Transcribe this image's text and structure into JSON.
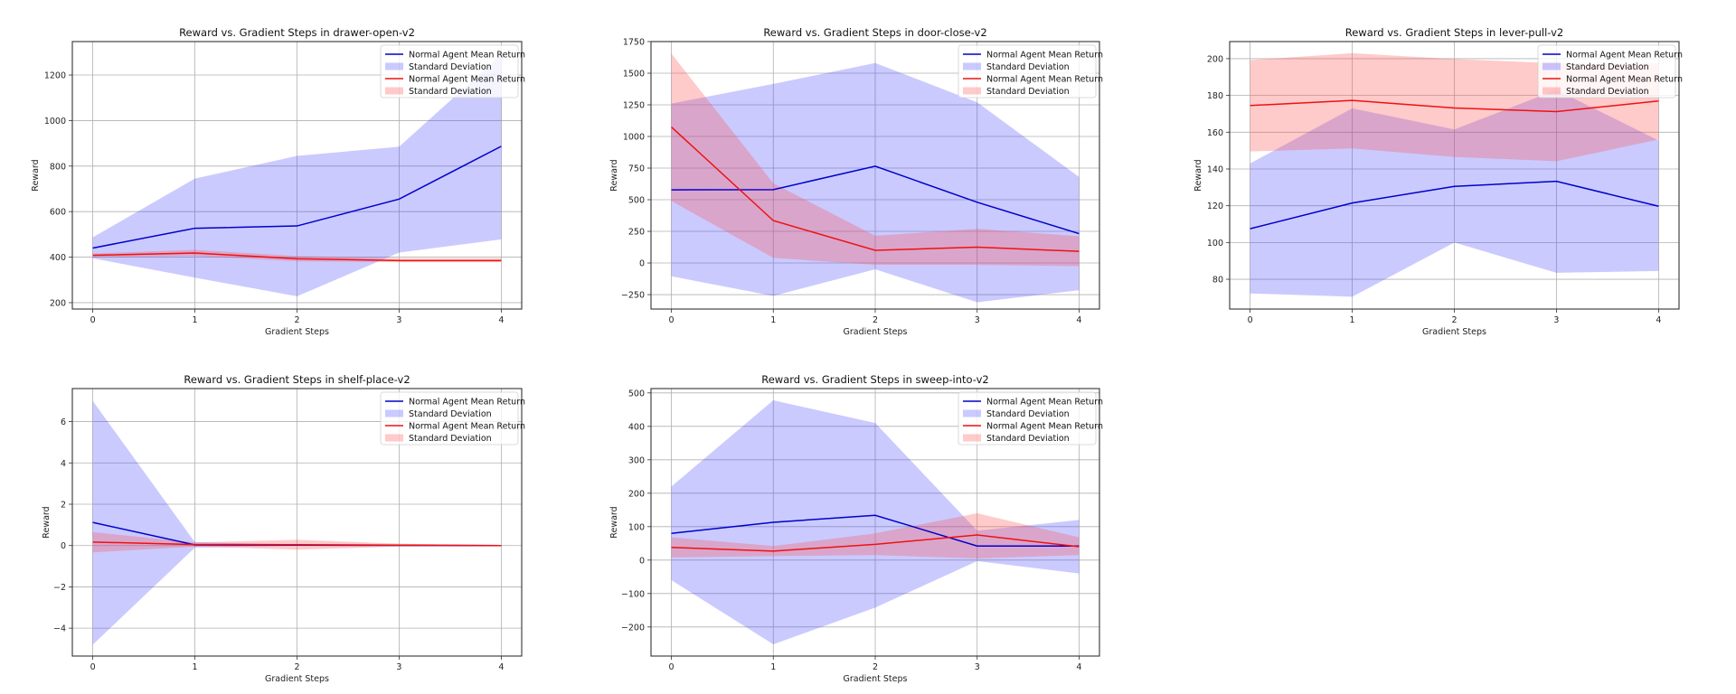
{
  "chart_data": [
    {
      "type": "line",
      "title": "Reward vs. Gradient Steps in drawer-open-v2",
      "xlabel": "Gradient Steps",
      "ylabel": "Reward",
      "x": [
        0,
        1,
        2,
        3,
        4
      ],
      "xticks": [
        0,
        1,
        2,
        3,
        4
      ],
      "yticks": [
        200,
        400,
        600,
        800,
        1000,
        1200
      ],
      "xlim": [
        -0.2,
        4.2
      ],
      "ylim": [
        172,
        1347
      ],
      "grid": true,
      "legend": "top-right",
      "series": [
        {
          "name": "Normal Agent Mean Return",
          "color": "#0000cc",
          "values": [
            440,
            527,
            537,
            655,
            887
          ],
          "std_lower": [
            395,
            310,
            228,
            420,
            478
          ],
          "std_upper": [
            487,
            745,
            845,
            885,
            1290
          ]
        },
        {
          "name": "Normal Agent Mean Return",
          "color": "#ee1111",
          "values": [
            408,
            418,
            393,
            385,
            385
          ],
          "std_lower": [
            400,
            405,
            382,
            378,
            378
          ],
          "std_upper": [
            416,
            432,
            405,
            395,
            395
          ]
        }
      ]
    },
    {
      "type": "line",
      "title": "Reward vs. Gradient Steps in door-close-v2",
      "xlabel": "Gradient Steps",
      "ylabel": "Reward",
      "x": [
        0,
        1,
        2,
        3,
        4
      ],
      "xticks": [
        0,
        1,
        2,
        3,
        4
      ],
      "yticks": [
        -250,
        0,
        250,
        500,
        750,
        1000,
        1250,
        1500,
        1750
      ],
      "xlim": [
        -0.2,
        4.2
      ],
      "ylim": [
        -364,
        1750
      ],
      "grid": true,
      "legend": "top-right",
      "series": [
        {
          "name": "Normal Agent Mean Return",
          "color": "#0000cc",
          "values": [
            578,
            580,
            765,
            480,
            232
          ],
          "std_lower": [
            -105,
            -260,
            -50,
            -310,
            -215
          ],
          "std_upper": [
            1260,
            1415,
            1580,
            1270,
            680
          ]
        },
        {
          "name": "Normal Agent Mean Return",
          "color": "#ee1111",
          "values": [
            1075,
            335,
            100,
            125,
            92
          ],
          "std_lower": [
            490,
            40,
            -15,
            -15,
            -25
          ],
          "std_upper": [
            1655,
            630,
            215,
            270,
            212
          ]
        }
      ]
    },
    {
      "type": "line",
      "title": "Reward vs. Gradient Steps in lever-pull-v2",
      "xlabel": "Gradient Steps",
      "ylabel": "Reward",
      "x": [
        0,
        1,
        2,
        3,
        4
      ],
      "xticks": [
        0,
        1,
        2,
        3,
        4
      ],
      "yticks": [
        80,
        100,
        120,
        140,
        160,
        180,
        200
      ],
      "xlim": [
        -0.2,
        4.2
      ],
      "ylim": [
        63.8,
        209.3
      ],
      "grid": true,
      "legend": "top-right",
      "series": [
        {
          "name": "Normal Agent Mean Return",
          "color": "#0000cc",
          "values": [
            107.5,
            121.5,
            130.5,
            133.3,
            119.7
          ],
          "std_lower": [
            72.3,
            70.5,
            100,
            83.5,
            84.5
          ],
          "std_upper": [
            143,
            173,
            161.5,
            183,
            155.5
          ]
        },
        {
          "name": "Normal Agent Mean Return",
          "color": "#ee1111",
          "values": [
            174.5,
            177.3,
            173.2,
            171.2,
            177
          ],
          "std_lower": [
            149.5,
            151.2,
            146.5,
            144.2,
            156
          ],
          "std_upper": [
            199.2,
            203,
            199.8,
            197.5,
            197.5
          ]
        }
      ]
    },
    {
      "type": "line",
      "title": "Reward vs. Gradient Steps in shelf-place-v2",
      "xlabel": "Gradient Steps",
      "ylabel": "Reward",
      "x": [
        0,
        1,
        2,
        3,
        4
      ],
      "xticks": [
        0,
        1,
        2,
        3,
        4
      ],
      "yticks": [
        -4,
        -2,
        0,
        2,
        4,
        6
      ],
      "xlim": [
        -0.2,
        4.2
      ],
      "ylim": [
        -5.35,
        7.6
      ],
      "grid": true,
      "legend": "top-right",
      "series": [
        {
          "name": "Normal Agent Mean Return",
          "color": "#0000cc",
          "values": [
            1.12,
            0.03,
            0.02,
            0.01,
            0.0
          ],
          "std_lower": [
            -4.8,
            -0.1,
            -0.02,
            -0.01,
            0.0
          ],
          "std_upper": [
            7.0,
            0.16,
            0.06,
            0.03,
            0.0
          ]
        },
        {
          "name": "Normal Agent Mean Return",
          "color": "#ee1111",
          "values": [
            0.17,
            0.05,
            0.04,
            0.02,
            0.0
          ],
          "std_lower": [
            -0.33,
            -0.05,
            -0.2,
            -0.05,
            0.0
          ],
          "std_upper": [
            0.65,
            0.15,
            0.28,
            0.09,
            0.0
          ]
        }
      ]
    },
    {
      "type": "line",
      "title": "Reward vs. Gradient Steps in sweep-into-v2",
      "xlabel": "Gradient Steps",
      "ylabel": "Reward",
      "x": [
        0,
        1,
        2,
        3,
        4
      ],
      "xticks": [
        0,
        1,
        2,
        3,
        4
      ],
      "yticks": [
        -200,
        -100,
        0,
        100,
        200,
        300,
        400,
        500
      ],
      "xlim": [
        -0.2,
        4.2
      ],
      "ylim": [
        -287,
        513
      ],
      "grid": true,
      "legend": "top-right",
      "series": [
        {
          "name": "Normal Agent Mean Return",
          "color": "#0000cc",
          "values": [
            80,
            113,
            134,
            42,
            42
          ],
          "std_lower": [
            -60,
            -252,
            -142,
            -3,
            -40
          ],
          "std_upper": [
            220,
            478,
            410,
            88,
            120
          ]
        },
        {
          "name": "Normal Agent Mean Return",
          "color": "#ee1111",
          "values": [
            38,
            27,
            47,
            75,
            40
          ],
          "std_lower": [
            8,
            12,
            15,
            5,
            15
          ],
          "std_upper": [
            68,
            42,
            80,
            140,
            68
          ]
        }
      ]
    }
  ],
  "legend_labels": {
    "mean_label": "Normal Agent Mean Return",
    "std_label": "Standard Deviation"
  }
}
